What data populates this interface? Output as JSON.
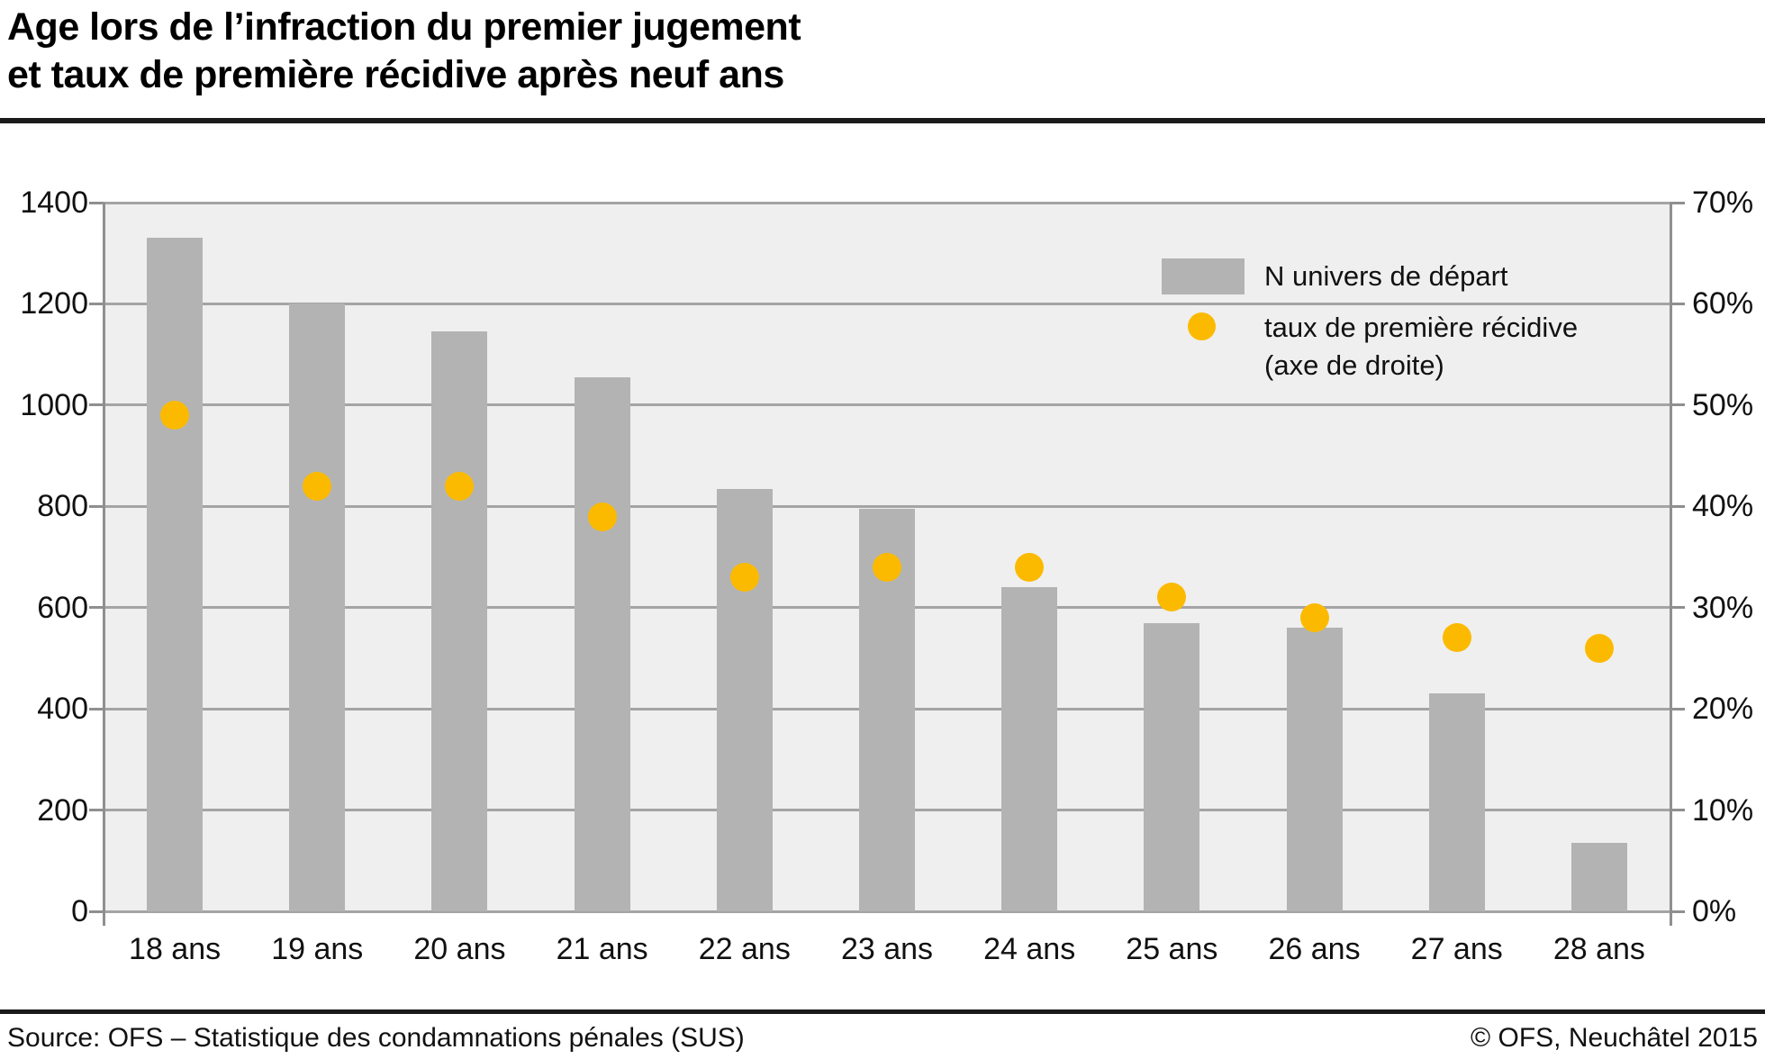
{
  "title": {
    "line1": "Age lors de l’infraction du premier jugement",
    "line2": "et taux de première récidive après neuf ans"
  },
  "footer": {
    "source": "Source: OFS – Statistique des condamnations pénales (SUS)",
    "copyright": "© OFS, Neuchâtel 2015"
  },
  "colors": {
    "bar": "#b3b3b3",
    "dot": "#fbba00",
    "plot_background": "#efefef",
    "gridline": "#a4a4a4",
    "axis_line": "#8f8f8f",
    "text": "#111111"
  },
  "chart_data": {
    "type": "bar",
    "title": "Age lors de l’infraction du premier jugement et taux de première récidive après neuf ans",
    "categories": [
      "18 ans",
      "19 ans",
      "20 ans",
      "21 ans",
      "22 ans",
      "23 ans",
      "24 ans",
      "25 ans",
      "26 ans",
      "27 ans",
      "28 ans"
    ],
    "series": [
      {
        "name": "N univers de départ",
        "type": "bar",
        "axis": "left",
        "values": [
          1330,
          1200,
          1145,
          1055,
          835,
          795,
          640,
          570,
          560,
          430,
          135
        ]
      },
      {
        "name": "taux de première récidive (axe de droite)",
        "type": "scatter",
        "axis": "right",
        "values": [
          49,
          42,
          42,
          39,
          33,
          34,
          34,
          31,
          29,
          27,
          26
        ]
      }
    ],
    "left_axis": {
      "min": 0,
      "max": 1400,
      "step": 200,
      "ticks": [
        "0",
        "200",
        "400",
        "600",
        "800",
        "1000",
        "1200",
        "1400"
      ]
    },
    "right_axis": {
      "min": 0,
      "max": 70,
      "step": 10,
      "ticks": [
        "0%",
        "10%",
        "20%",
        "30%",
        "40%",
        "50%",
        "60%",
        "70%"
      ]
    },
    "legend": {
      "position": "top-right",
      "entries": [
        {
          "swatch": "bar",
          "label": "N univers de départ"
        },
        {
          "swatch": "dot",
          "label_line1": "taux de première récidive",
          "label_line2": "(axe de droite)"
        }
      ]
    },
    "grid": true
  }
}
